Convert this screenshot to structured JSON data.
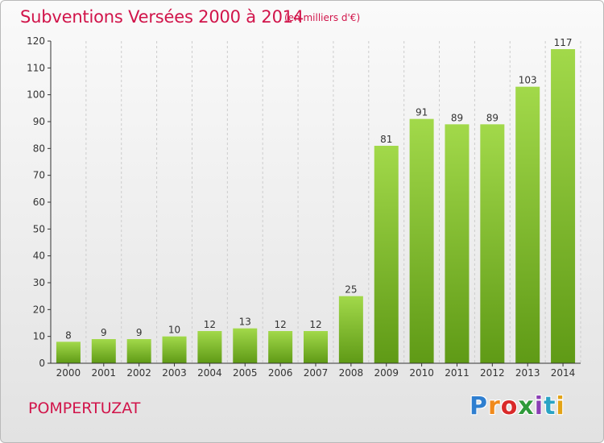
{
  "header": {
    "title": "Subventions Versées 2000 à 2014",
    "unit": "(en milliers d'€)"
  },
  "footer": {
    "commune": "POMPERTUZAT",
    "logo_text": "Proxiti",
    "logo_colors": [
      "#2f7fd0",
      "#f08a1c",
      "#d92a2a",
      "#2f9a3a",
      "#8b3fb5",
      "#2aa3c4",
      "#e3a316"
    ]
  },
  "colors": {
    "title": "#d1144a",
    "bar_light": "#a2d94a",
    "bar_dark": "#5f9a16",
    "axis": "#333333",
    "grid": "#cccccc"
  },
  "chart_data": {
    "type": "bar",
    "title": "Subventions Versées 2000 à 2014",
    "subtitle": "(en milliers d'€)",
    "categories": [
      "2000",
      "2001",
      "2002",
      "2003",
      "2004",
      "2005",
      "2006",
      "2007",
      "2008",
      "2009",
      "2010",
      "2011",
      "2012",
      "2013",
      "2014"
    ],
    "values": [
      8,
      9,
      9,
      10,
      12,
      13,
      12,
      12,
      25,
      81,
      91,
      89,
      89,
      103,
      117
    ],
    "ylim": [
      0,
      120
    ],
    "yticks": [
      0,
      10,
      20,
      30,
      40,
      50,
      60,
      70,
      80,
      90,
      100,
      110,
      120
    ],
    "grid": true,
    "grid_axis": "x",
    "data_labels": true
  }
}
